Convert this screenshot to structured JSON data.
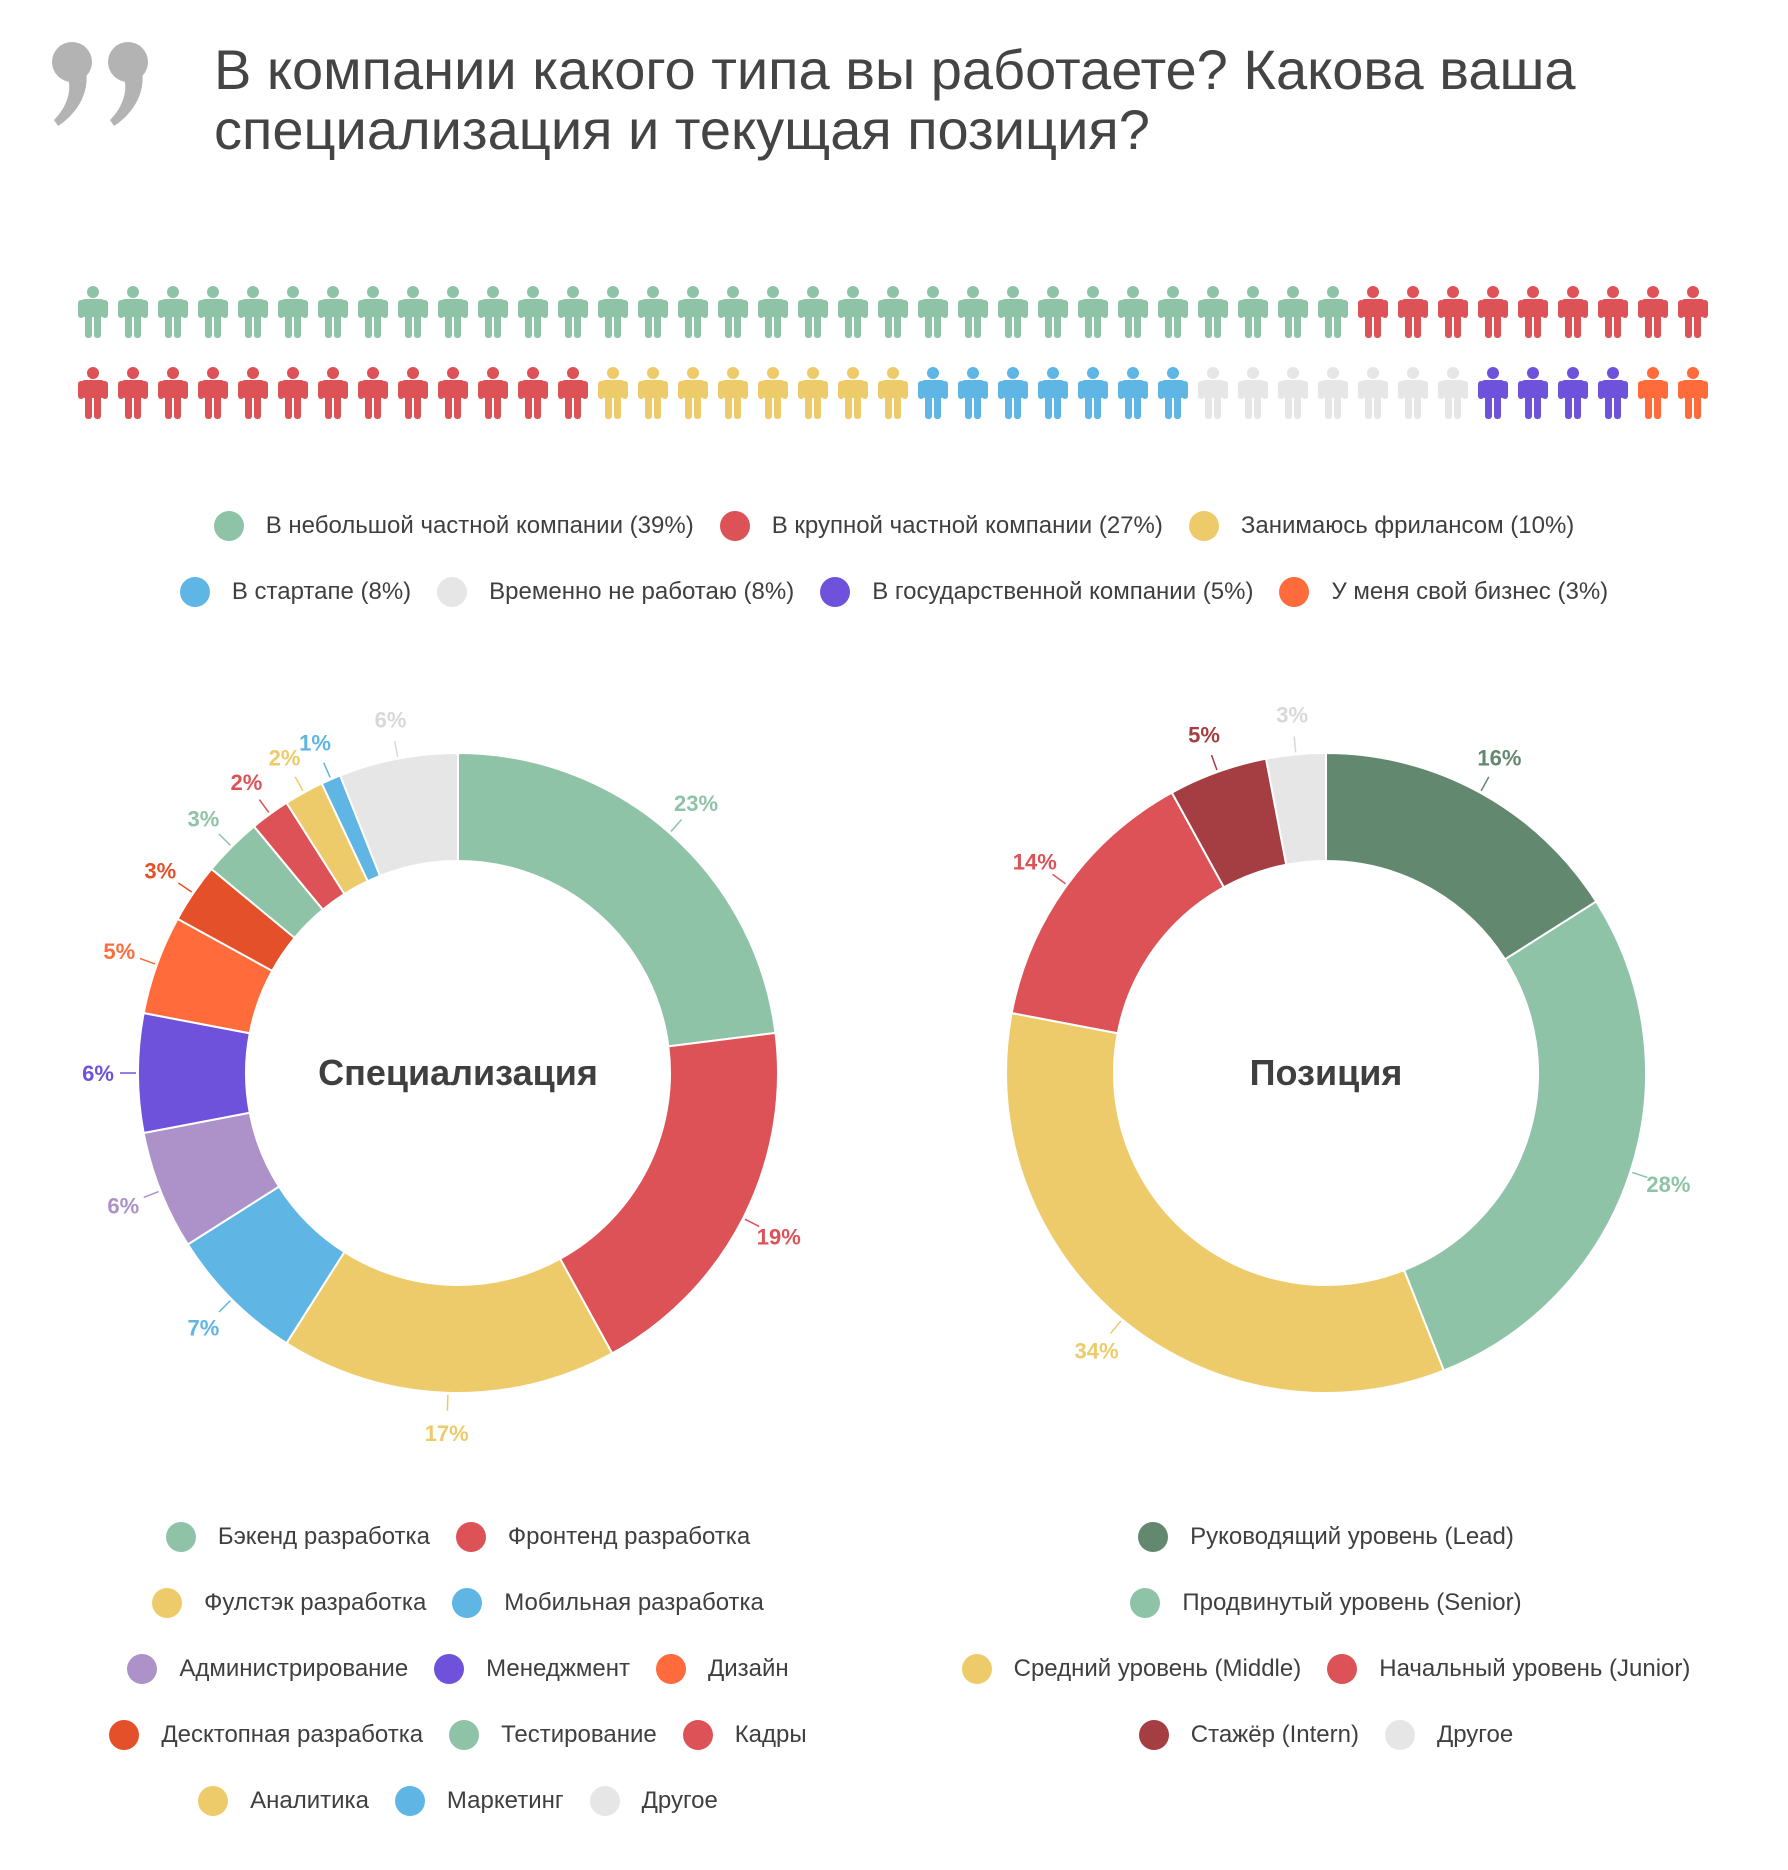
{
  "title": "В компании какого типа вы работаете? Какова ваша специализация и текущая позиция?",
  "company": {
    "legend": [
      {
        "label": "В небольшой частной компании (39%)",
        "value": 39,
        "count": 32,
        "color": "#8fc3a7"
      },
      {
        "label": "В крупной частной компании (27%)",
        "value": 27,
        "count": 22,
        "color": "#dc5256"
      },
      {
        "label": "Занимаюсь фрилансом (10%)",
        "value": 10,
        "count": 8,
        "color": "#eecb6a"
      },
      {
        "label": "В стартапе (8%)",
        "value": 8,
        "count": 7,
        "color": "#5fb6e4"
      },
      {
        "label": "Временно не работаю (8%)",
        "value": 8,
        "count": 7,
        "color": "#e6e6e6"
      },
      {
        "label": "В государственной компании (5%)",
        "value": 5,
        "count": 4,
        "color": "#6f52dc"
      },
      {
        "label": "У меня свой бизнес (3%)",
        "value": 3,
        "count": 2,
        "color": "#ff6b3a"
      }
    ]
  },
  "chart_data": [
    {
      "type": "pie",
      "title": "Специализация",
      "categories": [
        "Бэкенд разработка",
        "Фронтенд разработка",
        "Фулстэк разработка",
        "Мобильная разработка",
        "Администрирование",
        "Менеджмент",
        "Дизайн",
        "Десктопная разработка",
        "Тестирование",
        "Кадры",
        "Аналитика",
        "Маркетинг",
        "Другое"
      ],
      "values": [
        23,
        19,
        17,
        7,
        6,
        6,
        5,
        3,
        3,
        2,
        2,
        1,
        6
      ],
      "labels": [
        "23%",
        "19%",
        "17%",
        "7%",
        "6%",
        "6%",
        "5%",
        "3%",
        "3%",
        "2%",
        "2%",
        "1%",
        "6%"
      ],
      "colors": [
        "#8fc3a7",
        "#dc5256",
        "#eecb6a",
        "#5fb6e4",
        "#ac92c8",
        "#6f52dc",
        "#ff6b3a",
        "#e4502a",
        "#8fc3a7",
        "#dc5256",
        "#eecb6a",
        "#5fb6e4",
        "#e6e6e6"
      ]
    },
    {
      "type": "pie",
      "title": "Позиция",
      "categories": [
        "Руководящий уровень (Lead)",
        "Продвинутый уровень (Senior)",
        "Средний уровень (Middle)",
        "Начальный уровень (Junior)",
        "Стажёр (Intern)",
        "Другое"
      ],
      "values": [
        16,
        28,
        34,
        14,
        5,
        3
      ],
      "labels": [
        "16%",
        "28%",
        "34%",
        "14%",
        "5%",
        "3%"
      ],
      "colors": [
        "#62886f",
        "#8fc3a7",
        "#eecb6a",
        "#dc5256",
        "#a53e42",
        "#e6e6e6"
      ]
    }
  ]
}
